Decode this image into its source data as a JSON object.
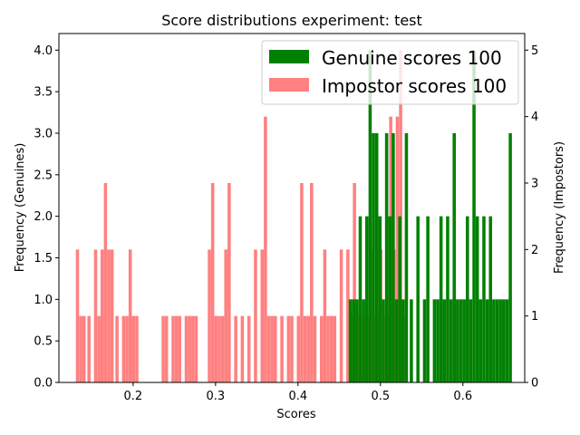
{
  "chart_data": {
    "type": "bar",
    "title": "Score distributions experiment: test",
    "xlabel": "Scores",
    "ylabel_left": "Frequency (Genuines)",
    "ylabel_right": "Frequency (Impostors)",
    "xlim": [
      0.11,
      0.675
    ],
    "ylim_left": [
      0,
      4.2
    ],
    "ylim_right": [
      0,
      5.25
    ],
    "x_ticks": [
      "0.2",
      "0.3",
      "0.4",
      "0.5",
      "0.6"
    ],
    "x_tick_values": [
      0.2,
      0.3,
      0.4,
      0.5,
      0.6
    ],
    "y_ticks_left": [
      "0.0",
      "0.5",
      "1.0",
      "1.5",
      "2.0",
      "2.5",
      "3.0",
      "3.5",
      "4.0"
    ],
    "y_tick_values_left": [
      0,
      0.5,
      1,
      1.5,
      2,
      2.5,
      3,
      3.5,
      4
    ],
    "y_ticks_right": [
      "0",
      "1",
      "2",
      "3",
      "4",
      "5"
    ],
    "y_tick_values_right": [
      0,
      1,
      2,
      3,
      4,
      5
    ],
    "legend_position": "top-right",
    "grid": false,
    "bar_width": 0.0039,
    "series": [
      {
        "name": "Genuine scores 100",
        "axis": "left",
        "color": "#008000",
        "x": [
          0.4635,
          0.4675,
          0.4715,
          0.4755,
          0.4795,
          0.4835,
          0.4875,
          0.4915,
          0.4955,
          0.4995,
          0.5035,
          0.5075,
          0.5115,
          0.5155,
          0.5195,
          0.5235,
          0.5275,
          0.5315,
          0.5375,
          0.5455,
          0.5535,
          0.5575,
          0.5655,
          0.5695,
          0.5735,
          0.5775,
          0.5815,
          0.5855,
          0.5895,
          0.5935,
          0.5975,
          0.6015,
          0.6055,
          0.6095,
          0.6135,
          0.6175,
          0.6215,
          0.6255,
          0.6295,
          0.6335,
          0.6375,
          0.6415,
          0.6455,
          0.6495,
          0.6535,
          0.6575
        ],
        "values": [
          1,
          1,
          1,
          2,
          1,
          2,
          4,
          3,
          3,
          2,
          1,
          3,
          2,
          3,
          1,
          2,
          1,
          3,
          1,
          2,
          1,
          2,
          1,
          1,
          2,
          1,
          2,
          1,
          3,
          1,
          1,
          1,
          2,
          1,
          4,
          2,
          1,
          2,
          1,
          2,
          1,
          1,
          1,
          1,
          1,
          3
        ]
      },
      {
        "name": "Impostor scores 100",
        "axis": "right",
        "color": "#ff8080",
        "x": [
          0.1325,
          0.1365,
          0.1405,
          0.1465,
          0.1545,
          0.1585,
          0.1625,
          0.1665,
          0.1705,
          0.1745,
          0.1805,
          0.1885,
          0.1925,
          0.1965,
          0.2005,
          0.2045,
          0.2365,
          0.2405,
          0.2485,
          0.2525,
          0.2565,
          0.2645,
          0.2685,
          0.2725,
          0.2765,
          0.2925,
          0.2965,
          0.3005,
          0.3045,
          0.3085,
          0.3125,
          0.3165,
          0.3245,
          0.3325,
          0.3405,
          0.3485,
          0.3565,
          0.3605,
          0.3645,
          0.3685,
          0.3725,
          0.3805,
          0.3885,
          0.3925,
          0.4005,
          0.4045,
          0.4085,
          0.4125,
          0.4165,
          0.4205,
          0.4285,
          0.4325,
          0.4365,
          0.4405,
          0.4445,
          0.4525,
          0.4605,
          0.4645,
          0.4685,
          0.4725,
          0.4765,
          0.4805,
          0.4845,
          0.4885,
          0.4925,
          0.4965,
          0.5005,
          0.5045,
          0.5085,
          0.5125,
          0.5165,
          0.5205,
          0.5245,
          0.5285
        ],
        "values": [
          2,
          1,
          1,
          1,
          2,
          1,
          2,
          3,
          2,
          2,
          1,
          1,
          1,
          2,
          1,
          1,
          1,
          1,
          1,
          1,
          1,
          1,
          1,
          1,
          1,
          2,
          3,
          1,
          1,
          1,
          2,
          3,
          1,
          1,
          1,
          2,
          2,
          4,
          1,
          1,
          1,
          1,
          1,
          1,
          1,
          3,
          1,
          1,
          3,
          1,
          1,
          2,
          1,
          1,
          1,
          2,
          2,
          1,
          3,
          1,
          1,
          1,
          1,
          2,
          1,
          1,
          2,
          1,
          1,
          4,
          2,
          4,
          5,
          1
        ]
      }
    ]
  }
}
